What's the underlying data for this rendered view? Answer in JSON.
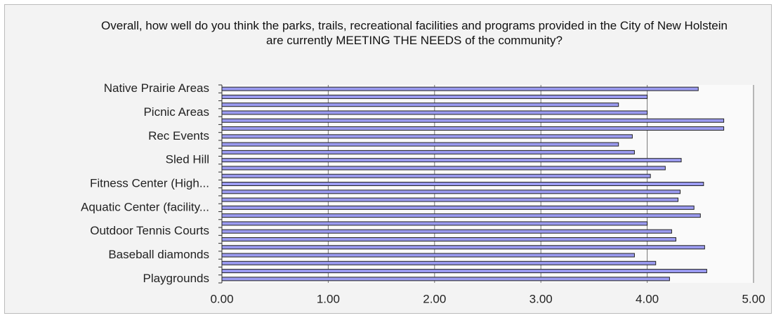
{
  "chart_data": {
    "type": "bar",
    "orientation": "horizontal",
    "title": "Overall, how well do you think the parks, trails, recreational facilities and programs provided in the City of New Holstein are currently MEETING THE NEEDS of the community?",
    "categories": [
      "Native Prairie Areas",
      null,
      null,
      "Picnic Areas",
      null,
      null,
      "Rec Events",
      null,
      null,
      "Sled Hill",
      null,
      null,
      "Fitness Center (High...",
      null,
      null,
      "Aquatic Center (facility...",
      null,
      null,
      "Outdoor Tennis Courts",
      null,
      null,
      "Baseball diamonds",
      null,
      null,
      "Playgrounds"
    ],
    "values": [
      4.48,
      4.0,
      3.73,
      4.0,
      4.72,
      4.72,
      3.86,
      3.73,
      3.88,
      4.32,
      4.17,
      4.03,
      4.53,
      4.31,
      4.29,
      4.44,
      4.5,
      4.0,
      4.23,
      4.27,
      4.54,
      3.88,
      4.08,
      4.56,
      4.21
    ],
    "color": "#9b9bf0",
    "xlim": [
      0,
      5
    ],
    "xticks": [
      {
        "value": 0,
        "label": "0.00"
      },
      {
        "value": 1,
        "label": "1.00"
      },
      {
        "value": 2,
        "label": "2.00"
      },
      {
        "value": 3,
        "label": "3.00"
      },
      {
        "value": 4,
        "label": "4.00"
      },
      {
        "value": 5,
        "label": "5.00"
      }
    ],
    "grid": true
  }
}
